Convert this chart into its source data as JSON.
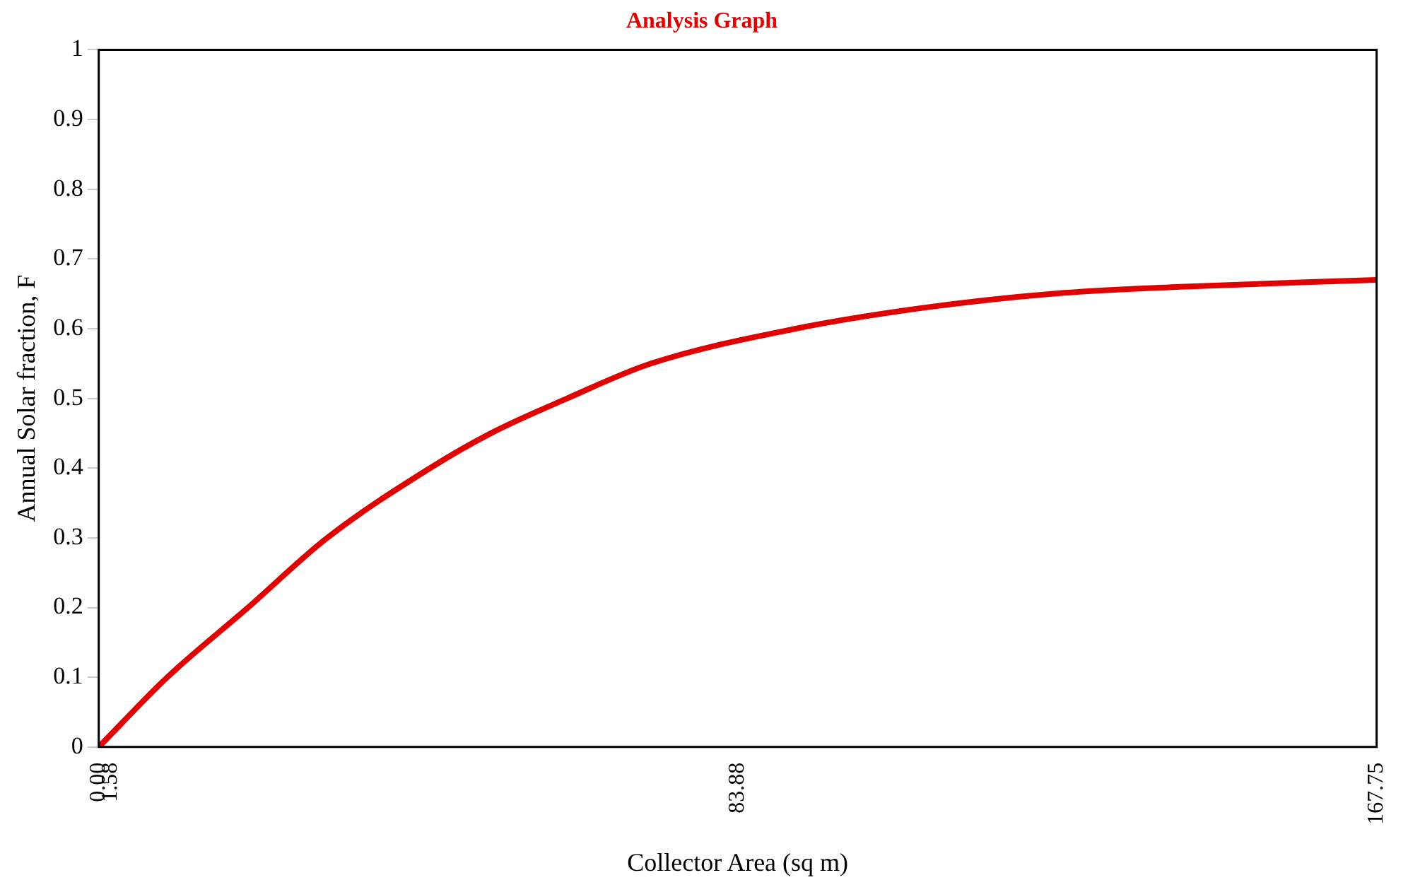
{
  "chart_data": {
    "type": "line",
    "title": "Analysis Graph",
    "xlabel": "Collector Area (sq m)",
    "ylabel": "Annual Solar fraction, F",
    "x": [
      0,
      9.0,
      19.6,
      30.0,
      43.5,
      51.5,
      61.5,
      72.5,
      91.5,
      108.3,
      125.1,
      142,
      167.75
    ],
    "series": [
      {
        "color": "#e00000",
        "values": [
          0,
          0.1,
          0.2,
          0.3,
          0.4,
          0.45,
          0.5,
          0.55,
          0.6,
          0.63,
          0.65,
          0.66,
          0.67
        ]
      }
    ],
    "xlim": [
      0,
      167.75
    ],
    "xticks": [
      {
        "value": 0,
        "label": "0.00"
      },
      {
        "value": 1.58,
        "label": "1.58"
      },
      {
        "value": 83.88,
        "label": "83.88"
      },
      {
        "value": 167.75,
        "label": "167.75"
      }
    ],
    "ylim": [
      0,
      1
    ],
    "yticks": [
      0,
      0.1,
      0.2,
      0.3,
      0.4,
      0.5,
      0.6,
      0.7,
      0.8,
      0.9,
      1
    ],
    "grid": false,
    "legend": false,
    "marker": "none",
    "line_style": "solid"
  }
}
